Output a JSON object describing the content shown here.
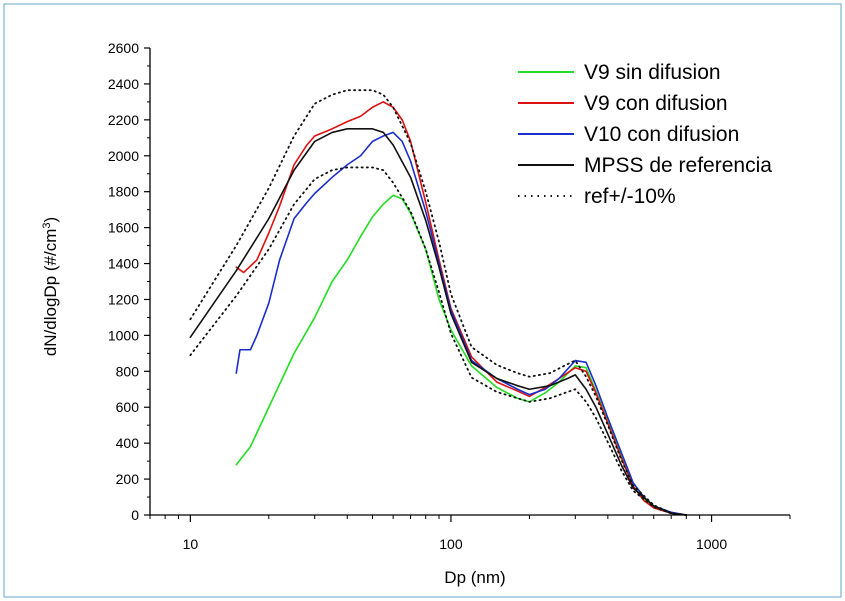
{
  "chart_data": {
    "type": "line",
    "xlabel": "Dp (nm)",
    "ylabel_main": "dN/dlogDp (#/cm",
    "ylabel_sup": "3",
    "ylabel_close": ")",
    "x_scale": "log",
    "xlim": [
      7,
      2000
    ],
    "ylim": [
      0,
      2600
    ],
    "x_ticks": [
      10,
      100,
      1000
    ],
    "x_tick_labels": [
      "10",
      "100",
      "1000"
    ],
    "y_ticks": [
      0,
      200,
      400,
      600,
      800,
      1000,
      1200,
      1400,
      1600,
      1800,
      2000,
      2200,
      2400,
      2600
    ],
    "y_tick_labels": [
      "0",
      "200",
      "400",
      "600",
      "800",
      "1000",
      "1200",
      "1400",
      "1600",
      "1800",
      "2000",
      "2200",
      "2400",
      "2600"
    ],
    "grid": false,
    "legend_position": "top-right",
    "series": [
      {
        "name": "V9 sin difusion",
        "color": "#22dd22",
        "style": "solid",
        "points": [
          [
            15,
            280
          ],
          [
            17,
            380
          ],
          [
            20,
            600
          ],
          [
            25,
            900
          ],
          [
            30,
            1100
          ],
          [
            35,
            1300
          ],
          [
            40,
            1420
          ],
          [
            45,
            1550
          ],
          [
            50,
            1660
          ],
          [
            55,
            1730
          ],
          [
            60,
            1780
          ],
          [
            65,
            1760
          ],
          [
            70,
            1680
          ],
          [
            80,
            1480
          ],
          [
            90,
            1200
          ],
          [
            100,
            1030
          ],
          [
            120,
            830
          ],
          [
            150,
            710
          ],
          [
            180,
            650
          ],
          [
            200,
            630
          ],
          [
            230,
            680
          ],
          [
            260,
            740
          ],
          [
            300,
            830
          ],
          [
            330,
            820
          ],
          [
            360,
            690
          ],
          [
            400,
            520
          ],
          [
            450,
            330
          ],
          [
            500,
            160
          ],
          [
            550,
            90
          ],
          [
            600,
            40
          ],
          [
            700,
            10
          ],
          [
            800,
            0
          ]
        ]
      },
      {
        "name": "V9 con difusion",
        "color": "#dd1111",
        "style": "solid",
        "points": [
          [
            15,
            1380
          ],
          [
            16,
            1350
          ],
          [
            18,
            1420
          ],
          [
            20,
            1570
          ],
          [
            22,
            1720
          ],
          [
            25,
            1950
          ],
          [
            28,
            2060
          ],
          [
            30,
            2110
          ],
          [
            35,
            2150
          ],
          [
            40,
            2190
          ],
          [
            45,
            2220
          ],
          [
            50,
            2270
          ],
          [
            55,
            2300
          ],
          [
            60,
            2270
          ],
          [
            65,
            2200
          ],
          [
            70,
            2080
          ],
          [
            80,
            1740
          ],
          [
            90,
            1420
          ],
          [
            100,
            1150
          ],
          [
            120,
            880
          ],
          [
            150,
            740
          ],
          [
            180,
            690
          ],
          [
            200,
            660
          ],
          [
            230,
            710
          ],
          [
            260,
            760
          ],
          [
            300,
            820
          ],
          [
            330,
            800
          ],
          [
            360,
            680
          ],
          [
            400,
            510
          ],
          [
            450,
            320
          ],
          [
            500,
            160
          ],
          [
            550,
            80
          ],
          [
            600,
            40
          ],
          [
            700,
            10
          ],
          [
            800,
            0
          ]
        ]
      },
      {
        "name": "V10 con difusion",
        "color": "#1a2ecc",
        "style": "solid",
        "points": [
          [
            15,
            790
          ],
          [
            15.5,
            920
          ],
          [
            17,
            920
          ],
          [
            18,
            1000
          ],
          [
            20,
            1180
          ],
          [
            22,
            1420
          ],
          [
            25,
            1650
          ],
          [
            28,
            1740
          ],
          [
            30,
            1790
          ],
          [
            35,
            1880
          ],
          [
            40,
            1950
          ],
          [
            45,
            2000
          ],
          [
            50,
            2080
          ],
          [
            55,
            2110
          ],
          [
            60,
            2130
          ],
          [
            65,
            2080
          ],
          [
            70,
            1970
          ],
          [
            80,
            1690
          ],
          [
            90,
            1400
          ],
          [
            100,
            1140
          ],
          [
            120,
            860
          ],
          [
            150,
            760
          ],
          [
            180,
            700
          ],
          [
            200,
            670
          ],
          [
            230,
            700
          ],
          [
            260,
            760
          ],
          [
            300,
            860
          ],
          [
            330,
            850
          ],
          [
            360,
            720
          ],
          [
            400,
            540
          ],
          [
            450,
            350
          ],
          [
            500,
            180
          ],
          [
            550,
            100
          ],
          [
            600,
            50
          ],
          [
            700,
            15
          ],
          [
            800,
            0
          ]
        ]
      },
      {
        "name": "MPSS de referencia",
        "color": "#111111",
        "style": "solid",
        "points": [
          [
            10,
            990
          ],
          [
            15,
            1360
          ],
          [
            20,
            1650
          ],
          [
            25,
            1920
          ],
          [
            30,
            2080
          ],
          [
            35,
            2130
          ],
          [
            40,
            2150
          ],
          [
            45,
            2150
          ],
          [
            50,
            2150
          ],
          [
            55,
            2130
          ],
          [
            60,
            2060
          ],
          [
            70,
            1880
          ],
          [
            80,
            1640
          ],
          [
            90,
            1380
          ],
          [
            100,
            1120
          ],
          [
            120,
            850
          ],
          [
            150,
            760
          ],
          [
            180,
            720
          ],
          [
            200,
            700
          ],
          [
            240,
            720
          ],
          [
            280,
            760
          ],
          [
            300,
            780
          ],
          [
            330,
            700
          ],
          [
            360,
            600
          ],
          [
            400,
            450
          ],
          [
            450,
            280
          ],
          [
            500,
            150
          ],
          [
            600,
            50
          ],
          [
            700,
            10
          ],
          [
            800,
            0
          ]
        ]
      },
      {
        "name": "ref+/-10%",
        "color": "#111111",
        "style": "dotted",
        "points": [
          [
            10,
            1090
          ],
          [
            15,
            1500
          ],
          [
            20,
            1820
          ],
          [
            25,
            2110
          ],
          [
            30,
            2290
          ],
          [
            35,
            2340
          ],
          [
            40,
            2365
          ],
          [
            45,
            2365
          ],
          [
            50,
            2365
          ],
          [
            55,
            2340
          ],
          [
            60,
            2270
          ],
          [
            70,
            2070
          ],
          [
            80,
            1800
          ],
          [
            90,
            1520
          ],
          [
            100,
            1230
          ],
          [
            120,
            935
          ],
          [
            150,
            835
          ],
          [
            180,
            790
          ],
          [
            200,
            770
          ],
          [
            240,
            790
          ],
          [
            280,
            840
          ],
          [
            300,
            860
          ],
          [
            330,
            770
          ],
          [
            360,
            660
          ],
          [
            400,
            500
          ],
          [
            450,
            310
          ],
          [
            500,
            165
          ],
          [
            600,
            55
          ],
          [
            700,
            11
          ],
          [
            800,
            0
          ]
        ]
      },
      {
        "name": "",
        "color": "#111111",
        "style": "dotted",
        "points": [
          [
            10,
            890
          ],
          [
            15,
            1220
          ],
          [
            20,
            1480
          ],
          [
            25,
            1730
          ],
          [
            30,
            1870
          ],
          [
            35,
            1920
          ],
          [
            40,
            1935
          ],
          [
            45,
            1935
          ],
          [
            50,
            1935
          ],
          [
            55,
            1920
          ],
          [
            60,
            1850
          ],
          [
            70,
            1690
          ],
          [
            80,
            1480
          ],
          [
            90,
            1240
          ],
          [
            100,
            1010
          ],
          [
            120,
            765
          ],
          [
            150,
            685
          ],
          [
            180,
            650
          ],
          [
            200,
            630
          ],
          [
            240,
            650
          ],
          [
            280,
            685
          ],
          [
            300,
            700
          ],
          [
            330,
            630
          ],
          [
            360,
            540
          ],
          [
            400,
            405
          ],
          [
            450,
            250
          ],
          [
            500,
            135
          ],
          [
            600,
            45
          ],
          [
            700,
            9
          ],
          [
            800,
            0
          ]
        ]
      }
    ]
  }
}
